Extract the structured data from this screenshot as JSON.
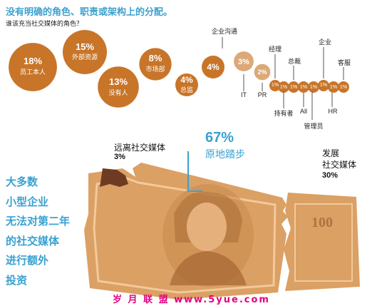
{
  "title": "没有明确的角色、职责或架构上的分配。",
  "subtitle": "谁该充当社交媒体的角色？",
  "colors": {
    "accent": "#3aa1cf",
    "bubble": "#c87529",
    "bubble_light": "#dba978",
    "money": "#dba064",
    "watermark": "#e5007f"
  },
  "chart_data": {
    "type": "bubble",
    "title": "没有明确的角色、职责或架构上的分配。",
    "subtitle": "谁该充当社交媒体的角色？",
    "unit": "%",
    "series": [
      {
        "label": "员工本人",
        "value": 18
      },
      {
        "label": "外部资源",
        "value": 15
      },
      {
        "label": "没有人",
        "value": 13
      },
      {
        "label": "市场部",
        "value": 8
      },
      {
        "label": "总监",
        "value": 4
      },
      {
        "label": "企业沟通",
        "value": 4
      },
      {
        "label": "IT",
        "value": 3
      },
      {
        "label": "PR",
        "value": 2
      },
      {
        "label": "经理",
        "value": 1
      },
      {
        "label": "持有者",
        "value": 1
      },
      {
        "label": "总裁",
        "value": 1
      },
      {
        "label": "All",
        "value": 1
      },
      {
        "label": "管理员",
        "value": 1
      },
      {
        "label": "企业",
        "value": 1
      },
      {
        "label": "HR",
        "value": 1
      },
      {
        "label": "客服",
        "value": 1
      }
    ]
  },
  "money_chart": {
    "type": "bar",
    "segments": [
      {
        "label": "远离社交媒体",
        "value": 3,
        "value_label": "3%"
      },
      {
        "label": "原地踏步",
        "value": 67,
        "value_label": "67%"
      },
      {
        "label": "发展社交媒体",
        "label_line1": "发展",
        "label_line2": "社交媒体",
        "value": 30,
        "value_label": "30%"
      }
    ],
    "bill_number": "100"
  },
  "left_text": [
    "大多数",
    "小型企业",
    "无法对第二年",
    "的社交媒体",
    "进行额外",
    "投资"
  ],
  "watermark": "岁 月 联 盟  www.5yue.com"
}
